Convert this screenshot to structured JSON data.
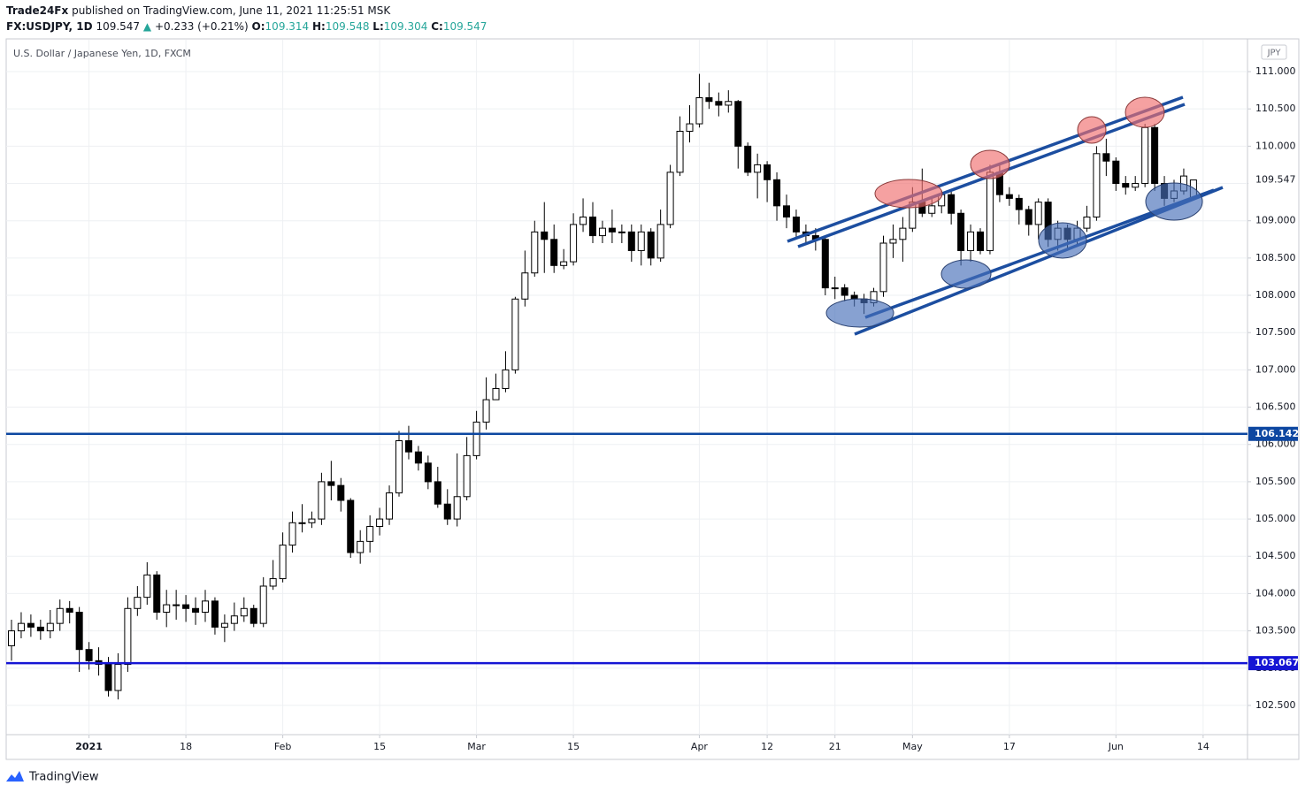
{
  "header": {
    "publisher": "Trade24Fx",
    "published": "published on TradingView.com, June 11, 2021 11:25:51 MSK",
    "symbol": "FX:USDJPY, 1D",
    "change": "+0.233 (+0.21%)",
    "ohlc_labels": [
      "O:",
      "H:",
      "L:",
      "C:"
    ]
  },
  "footer": {
    "brand": "TradingView"
  },
  "chart_data": {
    "type": "candlestick",
    "title": "U.S. Dollar / Japanese Yen, 1D, FXCM",
    "currency": "JPY",
    "up_color": "#ffffff",
    "down_color": "#000000",
    "wick_color": "#000000",
    "grid": true,
    "ylim": [
      102.108,
      111.427
    ],
    "yticks": [
      {
        "value": 102.5,
        "label": "102.500"
      },
      {
        "value": 103,
        "label": "103.000"
      },
      {
        "value": 103.5,
        "label": "103.500"
      },
      {
        "value": 104,
        "label": "104.000"
      },
      {
        "value": 104.5,
        "label": "104.500"
      },
      {
        "value": 105,
        "label": "105.000"
      },
      {
        "value": 105.5,
        "label": "105.500"
      },
      {
        "value": 106,
        "label": "106.000"
      },
      {
        "value": 106.5,
        "label": "106.500"
      },
      {
        "value": 107,
        "label": "107.000"
      },
      {
        "value": 107.5,
        "label": "107.500"
      },
      {
        "value": 108,
        "label": "108.000"
      },
      {
        "value": 108.5,
        "label": "108.500"
      },
      {
        "value": 109,
        "label": "109.000"
      },
      {
        "value": 109.5,
        "label": "109.500"
      },
      {
        "value": 110,
        "label": "110.000"
      },
      {
        "value": 110.5,
        "label": "110.500"
      },
      {
        "value": 111,
        "label": "111.000"
      }
    ],
    "hlines": [
      {
        "value": 106.142,
        "color": "#0d47a1"
      },
      {
        "value": 103.067,
        "color": "#1515d4"
      }
    ],
    "categories": [
      null,
      null,
      null,
      null,
      null,
      null,
      null,
      null,
      "2021",
      null,
      null,
      null,
      null,
      null,
      null,
      null,
      null,
      null,
      "18",
      null,
      null,
      null,
      null,
      null,
      null,
      null,
      null,
      null,
      "Feb",
      null,
      null,
      null,
      null,
      null,
      null,
      null,
      null,
      null,
      "15",
      null,
      null,
      null,
      null,
      null,
      null,
      null,
      null,
      null,
      "Mar",
      null,
      null,
      null,
      null,
      null,
      null,
      null,
      null,
      null,
      "15",
      null,
      null,
      null,
      null,
      null,
      null,
      null,
      null,
      null,
      null,
      null,
      null,
      "Apr",
      null,
      null,
      null,
      null,
      null,
      null,
      "12",
      null,
      null,
      null,
      null,
      null,
      null,
      "21",
      null,
      null,
      null,
      null,
      null,
      null,
      null,
      "May",
      null,
      null,
      null,
      null,
      null,
      null,
      null,
      null,
      null,
      "17",
      null,
      null,
      null,
      null,
      null,
      null,
      null,
      null,
      null,
      null,
      "Jun",
      null,
      null,
      null,
      null,
      null,
      null,
      null,
      null,
      "14"
    ],
    "open": [
      103.3,
      103.5,
      103.6,
      103.55,
      103.5,
      103.6,
      103.8,
      103.75,
      103.25,
      103.1,
      103.05,
      102.7,
      103.05,
      103.8,
      103.95,
      104.25,
      103.75,
      103.85,
      103.85,
      103.8,
      103.75,
      103.9,
      103.55,
      103.6,
      103.7,
      103.8,
      103.6,
      104.1,
      104.2,
      104.65,
      104.95,
      104.95,
      105.0,
      105.5,
      105.45,
      105.25,
      104.55,
      104.7,
      104.9,
      105.0,
      105.35,
      106.05,
      105.9,
      105.75,
      105.5,
      105.2,
      105.0,
      105.3,
      105.85,
      106.3,
      106.6,
      106.75,
      107.0,
      107.95,
      108.3,
      108.85,
      108.75,
      108.4,
      108.45,
      108.95,
      109.05,
      108.8,
      108.9,
      108.85,
      108.85,
      108.6,
      108.85,
      108.5,
      108.95,
      109.65,
      110.2,
      110.3,
      110.65,
      110.6,
      110.55,
      110.6,
      110.0,
      109.65,
      109.75,
      109.55,
      109.2,
      109.05,
      108.85,
      108.8,
      108.75,
      108.1,
      108.1,
      108.0,
      107.95,
      107.9,
      108.05,
      108.7,
      108.75,
      108.9,
      109.25,
      109.1,
      109.2,
      109.35,
      109.1,
      108.6,
      108.85,
      108.6,
      109.65,
      109.35,
      109.3,
      109.15,
      108.95,
      109.25,
      108.75,
      108.9,
      108.75,
      108.9,
      109.05,
      109.9,
      109.8,
      109.5,
      109.45,
      109.5,
      110.25,
      109.5,
      109.3,
      109.4,
      109.314,
      null
    ],
    "high": [
      103.65,
      103.75,
      103.72,
      103.65,
      103.78,
      103.92,
      103.9,
      103.82,
      103.35,
      103.28,
      103.15,
      103.2,
      103.95,
      104.1,
      104.42,
      104.3,
      104.05,
      104.05,
      103.98,
      103.95,
      104.05,
      103.95,
      103.72,
      103.88,
      103.95,
      103.85,
      104.22,
      104.45,
      104.82,
      105.1,
      105.2,
      105.1,
      105.62,
      105.78,
      105.55,
      105.28,
      104.85,
      105.05,
      105.15,
      105.45,
      106.18,
      106.25,
      105.98,
      105.85,
      105.7,
      105.4,
      105.88,
      106.1,
      106.45,
      106.9,
      106.95,
      107.25,
      107.98,
      108.6,
      109.0,
      109.25,
      108.95,
      108.62,
      109.1,
      109.3,
      109.25,
      109.0,
      109.15,
      108.95,
      108.95,
      108.95,
      108.9,
      109.15,
      109.75,
      110.4,
      110.55,
      110.97,
      110.85,
      110.72,
      110.75,
      110.62,
      110.05,
      109.9,
      109.8,
      109.65,
      109.35,
      109.15,
      108.95,
      108.9,
      108.8,
      108.25,
      108.15,
      108.05,
      108.02,
      108.1,
      108.8,
      108.95,
      109.05,
      109.45,
      109.7,
      109.3,
      109.4,
      109.4,
      109.15,
      108.95,
      108.9,
      109.75,
      109.75,
      109.45,
      109.35,
      109.2,
      109.3,
      109.3,
      109.0,
      108.95,
      109.0,
      109.2,
      110.0,
      110.1,
      109.85,
      109.6,
      109.6,
      110.3,
      110.3,
      109.6,
      109.55,
      109.7,
      109.548,
      null
    ],
    "low": [
      103.1,
      103.4,
      103.42,
      103.38,
      103.4,
      103.5,
      103.6,
      102.95,
      102.98,
      102.9,
      102.62,
      102.58,
      102.95,
      103.7,
      103.85,
      103.65,
      103.55,
      103.65,
      103.62,
      103.58,
      103.62,
      103.45,
      103.35,
      103.5,
      103.62,
      103.55,
      103.55,
      104.05,
      104.15,
      104.55,
      104.82,
      104.88,
      104.92,
      105.25,
      105.1,
      104.48,
      104.4,
      104.55,
      104.78,
      104.92,
      105.3,
      105.8,
      105.65,
      105.4,
      105.15,
      104.92,
      104.9,
      105.25,
      105.8,
      106.2,
      106.65,
      106.7,
      106.95,
      107.85,
      108.25,
      108.3,
      108.3,
      108.35,
      108.4,
      108.85,
      108.7,
      108.7,
      108.7,
      108.7,
      108.45,
      108.4,
      108.4,
      108.45,
      108.9,
      109.6,
      110.05,
      110.25,
      110.5,
      110.4,
      110.45,
      109.7,
      109.6,
      109.3,
      109.25,
      109.0,
      108.9,
      108.75,
      108.7,
      108.6,
      108.0,
      107.95,
      107.92,
      107.85,
      107.75,
      107.85,
      107.98,
      108.5,
      108.45,
      108.85,
      109.05,
      109.05,
      109.1,
      108.95,
      108.4,
      108.45,
      108.55,
      108.55,
      109.25,
      109.2,
      108.95,
      108.8,
      108.75,
      108.65,
      108.6,
      108.6,
      108.65,
      108.85,
      109.0,
      109.6,
      109.4,
      109.35,
      109.4,
      109.45,
      109.4,
      109.2,
      109.25,
      109.35,
      109.304,
      null
    ],
    "close": [
      103.5,
      103.6,
      103.55,
      103.5,
      103.6,
      103.8,
      103.75,
      103.25,
      103.1,
      103.05,
      102.7,
      103.05,
      103.8,
      103.95,
      104.25,
      103.75,
      103.85,
      103.85,
      103.8,
      103.75,
      103.9,
      103.55,
      103.6,
      103.7,
      103.8,
      103.6,
      104.1,
      104.2,
      104.65,
      104.95,
      104.95,
      105.0,
      105.5,
      105.45,
      105.25,
      104.55,
      104.7,
      104.9,
      105.0,
      105.35,
      106.05,
      105.9,
      105.75,
      105.5,
      105.2,
      105.0,
      105.3,
      105.85,
      106.3,
      106.6,
      106.75,
      107.0,
      107.95,
      108.3,
      108.85,
      108.75,
      108.4,
      108.45,
      108.95,
      109.05,
      108.8,
      108.9,
      108.85,
      108.85,
      108.6,
      108.85,
      108.5,
      108.95,
      109.65,
      110.2,
      110.3,
      110.65,
      110.6,
      110.55,
      110.6,
      110.0,
      109.65,
      109.75,
      109.55,
      109.2,
      109.05,
      108.85,
      108.8,
      108.75,
      108.1,
      108.1,
      108.0,
      107.95,
      107.9,
      108.05,
      108.7,
      108.75,
      108.9,
      109.25,
      109.1,
      109.2,
      109.35,
      109.1,
      108.6,
      108.85,
      108.6,
      109.65,
      109.35,
      109.3,
      109.15,
      108.95,
      109.25,
      108.75,
      108.9,
      108.75,
      108.9,
      109.05,
      109.9,
      109.8,
      109.5,
      109.45,
      109.5,
      110.25,
      109.5,
      109.3,
      109.4,
      109.6,
      109.547,
      null
    ]
  }
}
